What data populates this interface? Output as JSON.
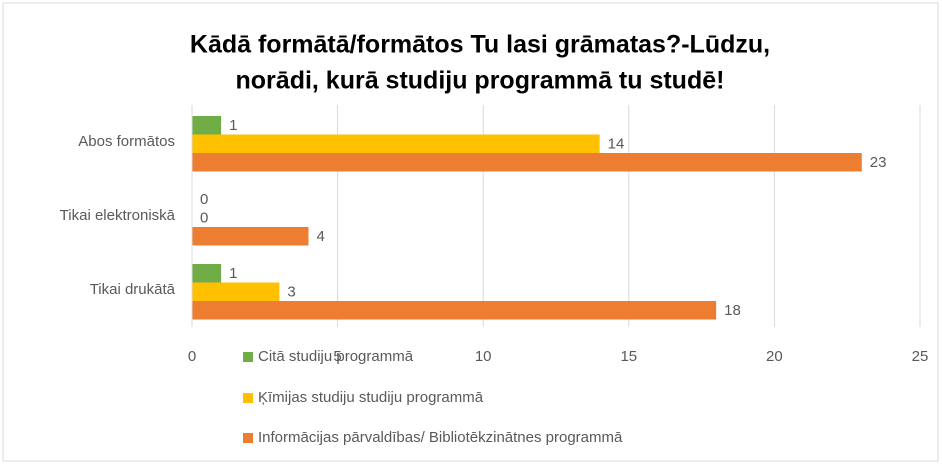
{
  "chart_data": {
    "type": "hbar",
    "title": [
      "Kādā formātā/formātos Tu lasi grāmatas?-Lūdzu,",
      "norādi, kurā studiju programmā tu studē!"
    ],
    "categories": [
      "Abos formātos",
      "Tikai elektroniskā",
      "Tikai drukātā"
    ],
    "series": [
      {
        "name": "Citā studiju programmā",
        "color": "#70ad47",
        "values": [
          1,
          0,
          1
        ]
      },
      {
        "name": "Ķīmijas studiju studiju programmā",
        "color": "#ffc000",
        "values": [
          14,
          0,
          3
        ]
      },
      {
        "name": "Informācijas pārvaldības/ Bibliotēkzinātnes programmā",
        "color": "#ed7d31",
        "values": [
          23,
          4,
          18
        ]
      }
    ],
    "xlim": [
      0,
      25
    ],
    "xticks": [
      0,
      5,
      10,
      15,
      20,
      25
    ],
    "grid": true
  }
}
